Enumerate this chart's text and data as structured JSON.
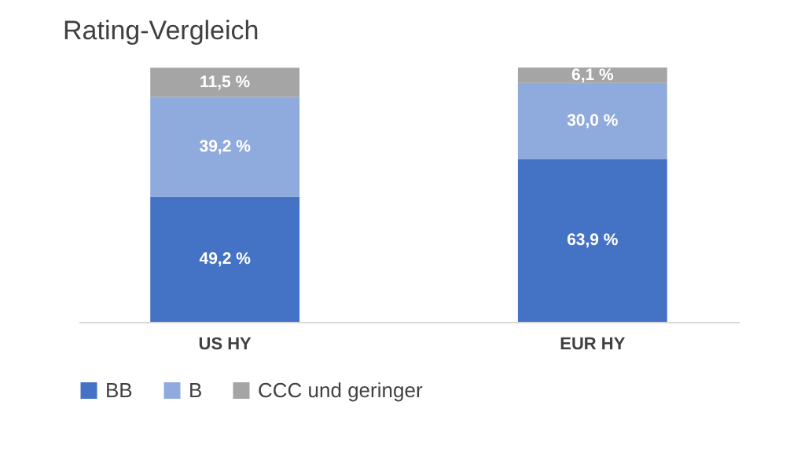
{
  "chart_data": {
    "type": "bar",
    "title": "Rating-Vergleich",
    "stacked": true,
    "legend": "bottom",
    "grid": false,
    "categories": [
      "US HY",
      "EUR HY"
    ],
    "series": [
      {
        "name": "BB",
        "color": "#4472c4",
        "values": [
          49.2,
          63.9
        ],
        "value_labels": [
          "49,2 %",
          "63,9 %"
        ]
      },
      {
        "name": "B",
        "color": "#8faadc",
        "values": [
          39.2,
          30.0
        ],
        "value_labels": [
          "39,2 %",
          "30,0 %"
        ]
      },
      {
        "name": "CCC und geringer",
        "color": "#a5a5a5",
        "values": [
          11.5,
          6.1
        ],
        "value_labels": [
          "11,5 %",
          "6,1 %"
        ]
      }
    ]
  }
}
